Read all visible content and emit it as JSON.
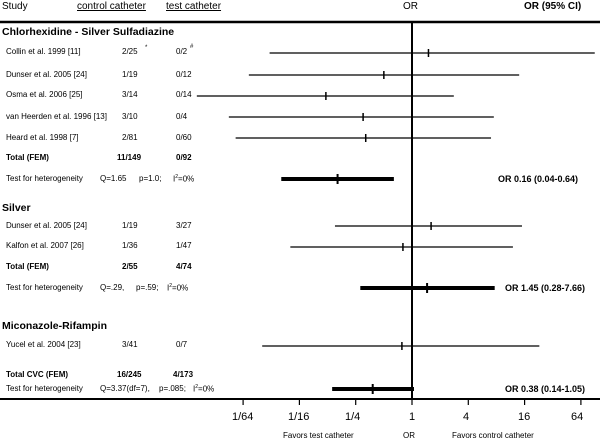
{
  "header": {
    "study": "Study",
    "control": "control catheter",
    "test": "test catheter",
    "or": "OR",
    "or_ci": "OR (95% CI)"
  },
  "chart_data": {
    "type": "forest",
    "scale": "log4",
    "xlim": [
      0.00390625,
      128
    ],
    "xticks": [
      {
        "label": "1/64",
        "value": 0.015625
      },
      {
        "label": "1/16",
        "value": 0.0625
      },
      {
        "label": "1/4",
        "value": 0.25
      },
      {
        "label": "1",
        "value": 1
      },
      {
        "label": "4",
        "value": 4
      },
      {
        "label": "16",
        "value": 16
      },
      {
        "label": "64",
        "value": 64
      }
    ],
    "xlabel_left": "Favors test catheter",
    "xlabel_center": "OR",
    "xlabel_right": "Favors control catheter",
    "groups": [
      {
        "name": "Chlorhexidine - Silver Sulfadiazine",
        "studies": [
          {
            "label": "Collin et al. 1999 [11]",
            "control": "2/25",
            "control_mark": "*",
            "test": "0/2",
            "test_mark": "#",
            "or": 1.5,
            "lo": 0.03,
            "hi": 90
          },
          {
            "label": "Dunser et al. 2005 [24]",
            "control": "1/19",
            "test": "0/12",
            "or": 0.5,
            "lo": 0.018,
            "hi": 14
          },
          {
            "label": "Osma et al. 2006 [25]",
            "control": "3/14",
            "test": "0/14",
            "or": 0.12,
            "lo": 0.005,
            "hi": 2.8
          },
          {
            "label": "van Heerden et al. 1996 [13]",
            "control": "3/10",
            "test": "0/4",
            "or": 0.3,
            "lo": 0.011,
            "hi": 7.5
          },
          {
            "label": "Heard et al. 1998 [7]",
            "control": "2/81",
            "test": "0/60",
            "or": 0.32,
            "lo": 0.013,
            "hi": 7
          }
        ],
        "total": {
          "label": "Total (FEM)",
          "control": "11/149",
          "test": "0/92"
        },
        "heterogeneity": {
          "label": "Test for heterogeneity",
          "q": "Q=1.65",
          "p": "p=1.0;",
          "i2": "I",
          "i2_value": "=0%"
        },
        "pooled": {
          "or": 0.16,
          "lo": 0.04,
          "hi": 0.64,
          "text": "OR 0.16 (0.04-0.64)"
        }
      },
      {
        "name": "Silver",
        "studies": [
          {
            "label": "Dunser et al. 2005 [24]",
            "control": "1/19",
            "test": "3/27",
            "or": 1.6,
            "lo": 0.15,
            "hi": 15
          },
          {
            "label": "Kalfon et al. 2007 [26]",
            "control": "1/36",
            "test": "1/47",
            "or": 0.8,
            "lo": 0.05,
            "hi": 12
          }
        ],
        "total": {
          "label": "Total (FEM)",
          "control": "2/55",
          "test": "4/74"
        },
        "heterogeneity": {
          "label": "Test for heterogeneity",
          "q": "Q=.29,",
          "p": "p=.59;",
          "i2": "I",
          "i2_value": "=0%"
        },
        "pooled": {
          "or": 1.45,
          "lo": 0.28,
          "hi": 7.66,
          "text": "OR 1.45 (0.28-7.66)"
        }
      },
      {
        "name": "Miconazole-Rifampin",
        "studies": [
          {
            "label": "Yucel et al. 2004 [23]",
            "control": "3/41",
            "test": "0/7",
            "or": 0.78,
            "lo": 0.025,
            "hi": 23
          }
        ]
      }
    ],
    "overall": {
      "label": "Total CVC (FEM)",
      "control": "16/245",
      "test": "4/173",
      "heterogeneity": {
        "label": "Test for heterogeneity",
        "q": "Q=3.37(df=7),",
        "p": "p=.085;",
        "i2": "I",
        "i2_value": "=0%"
      },
      "pooled": {
        "or": 0.38,
        "lo": 0.14,
        "hi": 1.05,
        "text": "OR 0.38 (0.14-1.05)"
      }
    }
  }
}
